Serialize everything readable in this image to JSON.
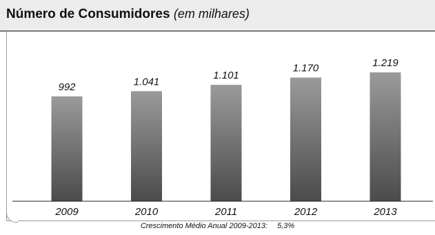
{
  "title": "Número de Consumidores",
  "subtitle": "(em milhares)",
  "footnote_label": "Crescimento Médio Anual 2009-2013:",
  "footnote_value": "5,3%",
  "colors": {
    "bar_top": "#9a9a9a",
    "bar_bottom": "#4b4b4b",
    "axis": "#222222",
    "header_bg": "#ececec"
  },
  "chart_data": {
    "type": "bar",
    "categories": [
      "2009",
      "2010",
      "2011",
      "2012",
      "2013"
    ],
    "values": [
      992,
      1041,
      1101,
      1170,
      1219
    ],
    "value_labels": [
      "992",
      "1.041",
      "1.101",
      "1.170",
      "1.219"
    ],
    "title": "Número de Consumidores (em milhares)",
    "xlabel": "",
    "ylabel": "",
    "ylim": [
      0,
      1300
    ],
    "grid": false,
    "legend": "none"
  }
}
